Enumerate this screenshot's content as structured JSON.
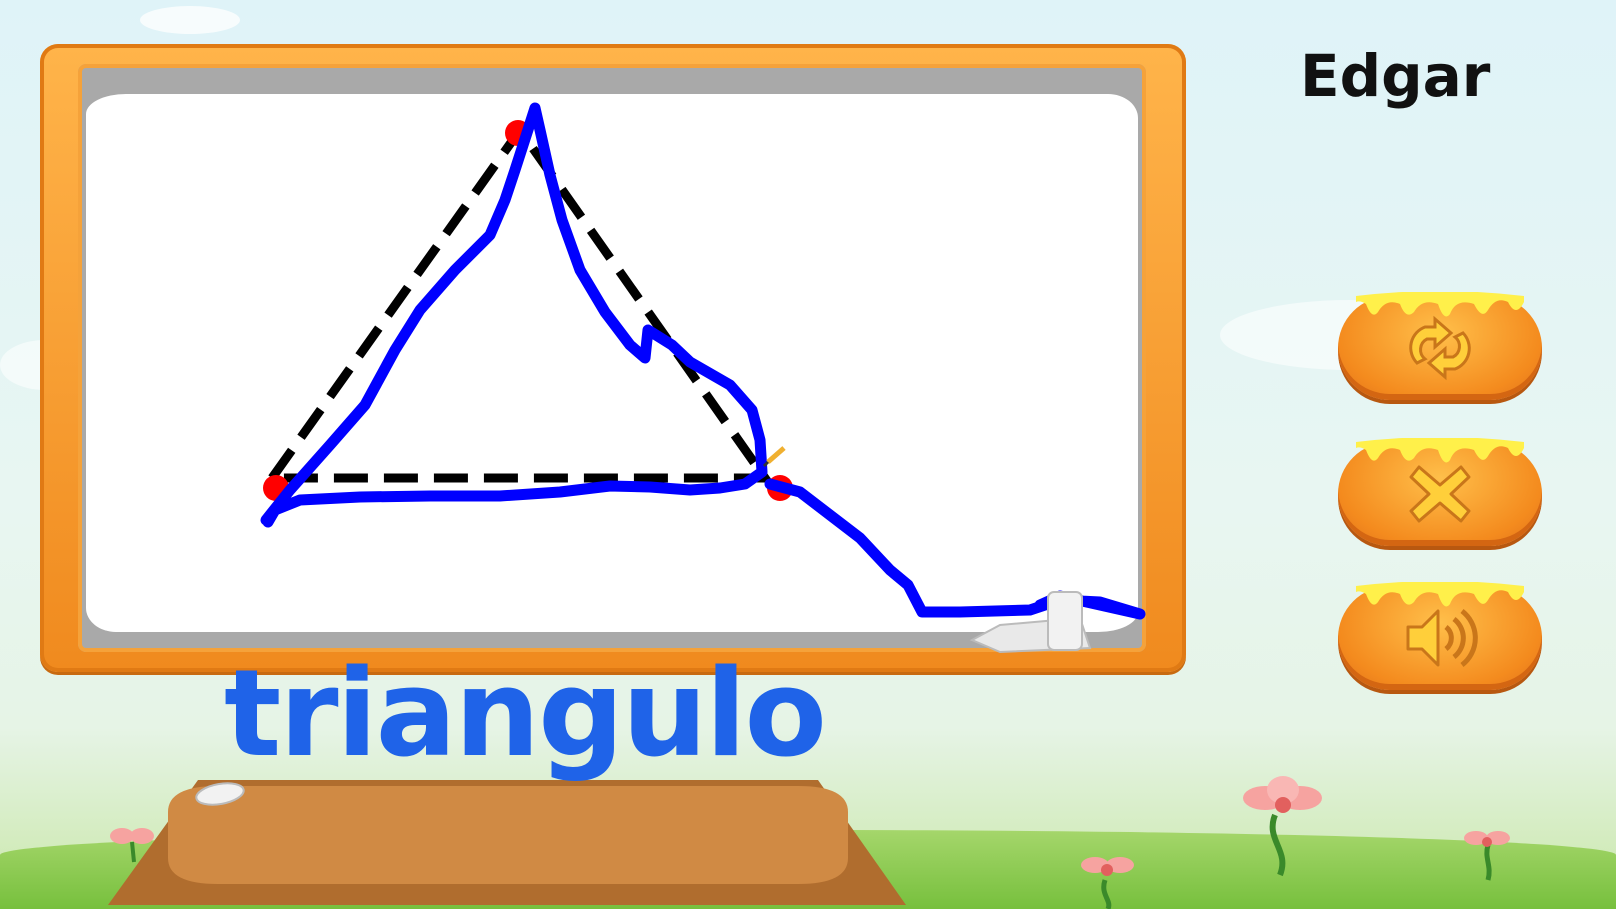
{
  "player": {
    "name": "Edgar"
  },
  "word": {
    "text": "triangulo"
  },
  "controls": {
    "restart_icon": "restart-arrows-icon",
    "close_icon": "close-x-icon",
    "sound_icon": "speaker-sound-icon"
  },
  "colors": {
    "word": "#1f63e8",
    "trace_stroke": "#0000ff",
    "guide_dash": "#000000",
    "vertex_dot": "#ff0000",
    "frame": "#f08a1e",
    "button": "#f48b1e"
  }
}
